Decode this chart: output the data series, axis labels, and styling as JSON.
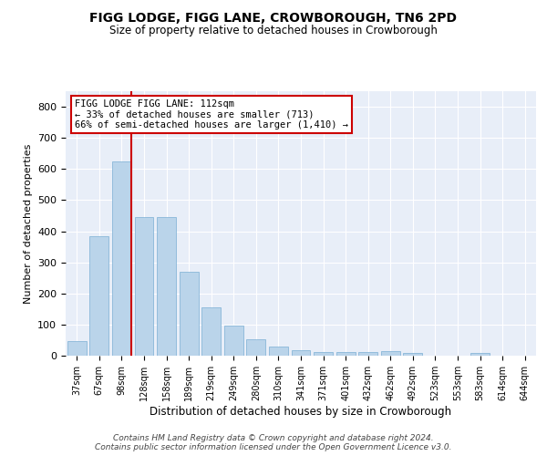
{
  "title": "FIGG LODGE, FIGG LANE, CROWBOROUGH, TN6 2PD",
  "subtitle": "Size of property relative to detached houses in Crowborough",
  "xlabel": "Distribution of detached houses by size in Crowborough",
  "ylabel": "Number of detached properties",
  "bar_color": "#bad4ea",
  "bar_edge_color": "#7aafd4",
  "background_color": "#e8eef8",
  "grid_color": "#ffffff",
  "fig_background": "#ffffff",
  "categories": [
    "37sqm",
    "67sqm",
    "98sqm",
    "128sqm",
    "158sqm",
    "189sqm",
    "219sqm",
    "249sqm",
    "280sqm",
    "310sqm",
    "341sqm",
    "371sqm",
    "401sqm",
    "432sqm",
    "462sqm",
    "492sqm",
    "523sqm",
    "553sqm",
    "583sqm",
    "614sqm",
    "644sqm"
  ],
  "values": [
    47,
    385,
    625,
    445,
    445,
    270,
    155,
    98,
    52,
    28,
    18,
    12,
    12,
    12,
    15,
    8,
    0,
    0,
    8,
    0,
    0
  ],
  "ylim": [
    0,
    850
  ],
  "yticks": [
    0,
    100,
    200,
    300,
    400,
    500,
    600,
    700,
    800
  ],
  "red_line_x": 2,
  "annotation_text": "FIGG LODGE FIGG LANE: 112sqm\n← 33% of detached houses are smaller (713)\n66% of semi-detached houses are larger (1,410) →",
  "annotation_box_color": "#ffffff",
  "annotation_border_color": "#cc0000",
  "footer_line1": "Contains HM Land Registry data © Crown copyright and database right 2024.",
  "footer_line2": "Contains public sector information licensed under the Open Government Licence v3.0."
}
